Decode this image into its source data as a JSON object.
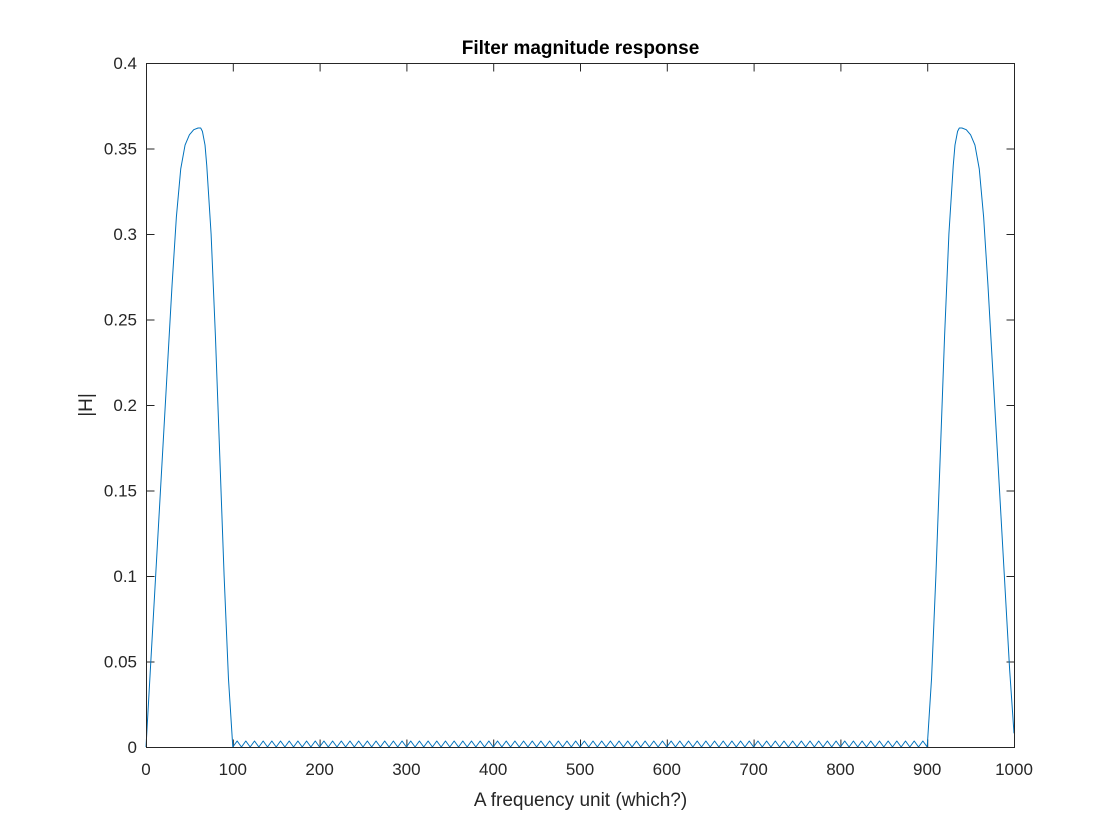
{
  "chart_data": {
    "type": "line",
    "title": "Filter magnitude response",
    "xlabel": "A frequency unit (which?)",
    "ylabel": "|H|",
    "xlim": [
      0,
      1000
    ],
    "ylim": [
      0,
      0.4
    ],
    "xticks": [
      0,
      100,
      200,
      300,
      400,
      500,
      600,
      700,
      800,
      900,
      1000
    ],
    "xtick_labels": [
      "0",
      "100",
      "200",
      "300",
      "400",
      "500",
      "600",
      "700",
      "800",
      "900",
      "1000"
    ],
    "yticks": [
      0,
      0.05,
      0.1,
      0.15,
      0.2,
      0.25,
      0.3,
      0.35,
      0.4
    ],
    "ytick_labels": [
      "0",
      "0.05",
      "0.1",
      "0.15",
      "0.2",
      "0.25",
      "0.3",
      "0.35",
      "0.4"
    ],
    "grid": false,
    "box": true,
    "line_color": "#0072BD",
    "series": [
      {
        "x": [
          0,
          5,
          10,
          15,
          20,
          25,
          30,
          35,
          40,
          45,
          50,
          55,
          60,
          63,
          65,
          68,
          70,
          75,
          80,
          85,
          90,
          95,
          100,
          105,
          110,
          115,
          120,
          125,
          130,
          135,
          140,
          145,
          150,
          155,
          160,
          165,
          170,
          175,
          180,
          185,
          190,
          195,
          200,
          205,
          210,
          215,
          220,
          225,
          230,
          235,
          240,
          245,
          250,
          255,
          260,
          265,
          270,
          275,
          280,
          285,
          290,
          295,
          300,
          305,
          310,
          315,
          320,
          325,
          330,
          335,
          340,
          345,
          350,
          355,
          360,
          365,
          370,
          375,
          380,
          385,
          390,
          395,
          400,
          405,
          410,
          415,
          420,
          425,
          430,
          435,
          440,
          445,
          450,
          455,
          460,
          465,
          470,
          475,
          480,
          485,
          490,
          495,
          500,
          505,
          510,
          515,
          520,
          525,
          530,
          535,
          540,
          545,
          550,
          555,
          560,
          565,
          570,
          575,
          580,
          585,
          590,
          595,
          600,
          605,
          610,
          615,
          620,
          625,
          630,
          635,
          640,
          645,
          650,
          655,
          660,
          665,
          670,
          675,
          680,
          685,
          690,
          695,
          700,
          705,
          710,
          715,
          720,
          725,
          730,
          735,
          740,
          745,
          750,
          755,
          760,
          765,
          770,
          775,
          780,
          785,
          790,
          795,
          800,
          805,
          810,
          815,
          820,
          825,
          830,
          835,
          840,
          845,
          850,
          855,
          860,
          865,
          870,
          875,
          880,
          885,
          890,
          895,
          900,
          905,
          910,
          915,
          920,
          925,
          930,
          932,
          935,
          937,
          940,
          945,
          950,
          955,
          960,
          965,
          970,
          975,
          980,
          985,
          990,
          995,
          1000
        ],
        "y": [
          0,
          0.045,
          0.09,
          0.135,
          0.18,
          0.225,
          0.27,
          0.31,
          0.338,
          0.352,
          0.358,
          0.361,
          0.362,
          0.362,
          0.36,
          0.352,
          0.34,
          0.3,
          0.24,
          0.17,
          0.1,
          0.04,
          0,
          0.0035,
          0,
          0.0035,
          0,
          0.0035,
          0,
          0.0035,
          0,
          0.0035,
          0,
          0.0035,
          0,
          0.0035,
          0,
          0.0035,
          0,
          0.0035,
          0,
          0.0035,
          0,
          0.0035,
          0,
          0.0035,
          0,
          0.0035,
          0,
          0.0035,
          0,
          0.0035,
          0,
          0.0035,
          0,
          0.0035,
          0,
          0.0035,
          0,
          0.0035,
          0,
          0.0035,
          0,
          0.0035,
          0,
          0.0035,
          0,
          0.0035,
          0,
          0.0035,
          0,
          0.0035,
          0,
          0.0035,
          0,
          0.0035,
          0,
          0.0035,
          0,
          0.0035,
          0,
          0.0035,
          0,
          0.0035,
          0,
          0.0035,
          0,
          0.0035,
          0,
          0.0035,
          0,
          0.0035,
          0,
          0.0035,
          0,
          0.0035,
          0,
          0.0035,
          0,
          0.0035,
          0,
          0.0035,
          0,
          0.0035,
          0,
          0.0035,
          0,
          0.0035,
          0,
          0.0035,
          0,
          0.0035,
          0,
          0.0035,
          0,
          0.0035,
          0,
          0.0035,
          0,
          0.0035,
          0,
          0.0035,
          0,
          0.0035,
          0,
          0.0035,
          0,
          0.0035,
          0,
          0.0035,
          0,
          0.0035,
          0,
          0.0035,
          0,
          0.0035,
          0,
          0.0035,
          0,
          0.0035,
          0,
          0.0035,
          0,
          0.0035,
          0,
          0.0035,
          0,
          0.0035,
          0,
          0.0035,
          0,
          0.0035,
          0,
          0.0035,
          0,
          0.0035,
          0,
          0.0035,
          0,
          0.0035,
          0,
          0.0035,
          0,
          0.0035,
          0,
          0.0035,
          0,
          0.0035,
          0,
          0.0035,
          0,
          0.0035,
          0,
          0.0035,
          0,
          0.0035,
          0,
          0.0035,
          0,
          0.0035,
          0,
          0.0035,
          0,
          0.04,
          0.1,
          0.17,
          0.24,
          0.3,
          0.34,
          0.352,
          0.36,
          0.362,
          0.362,
          0.361,
          0.358,
          0.352,
          0.338,
          0.31,
          0.27,
          0.225,
          0.18,
          0.135,
          0.09,
          0.045,
          0.008
        ]
      }
    ]
  }
}
